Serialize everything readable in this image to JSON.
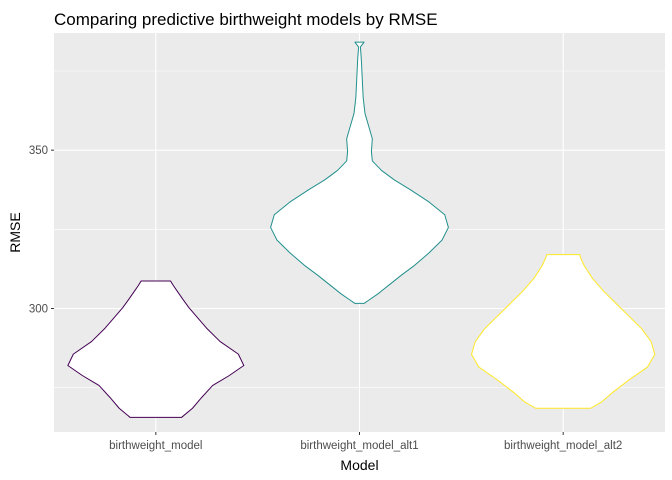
{
  "chart_data": {
    "type": "violin",
    "title": "Comparing predictive birthweight models by RMSE",
    "xlabel": "Model",
    "ylabel": "RMSE",
    "ylim": [
      261,
      387
    ],
    "yticks": [
      300,
      350
    ],
    "grid": true,
    "panel_background": "#EBEBEB",
    "categories": [
      "birthweight_model",
      "birthweight_model_alt1",
      "birthweight_model_alt2"
    ],
    "series": [
      {
        "category": "birthweight_model",
        "color": "#440154",
        "min": 265.6,
        "max": 308.7,
        "profile": [
          [
            265.6,
            0.28
          ],
          [
            268.5,
            0.4
          ],
          [
            271.9,
            0.5
          ],
          [
            275.7,
            0.62
          ],
          [
            278.8,
            0.8
          ],
          [
            282.0,
            0.96
          ],
          [
            285.6,
            0.9
          ],
          [
            289.6,
            0.7
          ],
          [
            293.6,
            0.56
          ],
          [
            297.6,
            0.44
          ],
          [
            300.3,
            0.36
          ],
          [
            302.7,
            0.3
          ],
          [
            305.2,
            0.24
          ],
          [
            307.3,
            0.19
          ],
          [
            308.7,
            0.16
          ]
        ]
      },
      {
        "category": "birthweight_model_alt1",
        "color": "#21908C",
        "min": 301.6,
        "max": 384.1,
        "profile": [
          [
            301.6,
            0.05
          ],
          [
            302.6,
            0.1
          ],
          [
            304.6,
            0.2
          ],
          [
            307.6,
            0.33
          ],
          [
            310.6,
            0.46
          ],
          [
            313.6,
            0.6
          ],
          [
            317.6,
            0.76
          ],
          [
            321.6,
            0.9
          ],
          [
            325.6,
            0.97
          ],
          [
            329.6,
            0.93
          ],
          [
            333.6,
            0.76
          ],
          [
            337.6,
            0.55
          ],
          [
            340.6,
            0.38
          ],
          [
            343.6,
            0.24
          ],
          [
            346.6,
            0.14
          ],
          [
            349.6,
            0.13
          ],
          [
            353.6,
            0.14
          ],
          [
            357.6,
            0.1
          ],
          [
            361.6,
            0.06
          ],
          [
            366.6,
            0.04
          ],
          [
            372.6,
            0.03
          ],
          [
            378.6,
            0.02
          ],
          [
            382.6,
            0.01
          ],
          [
            384.1,
            0.05
          ]
        ]
      },
      {
        "category": "birthweight_model_alt2",
        "color": "#FDE725",
        "min": 268.5,
        "max": 317.0,
        "profile": [
          [
            268.5,
            0.3
          ],
          [
            270.5,
            0.42
          ],
          [
            273.5,
            0.54
          ],
          [
            277.5,
            0.72
          ],
          [
            281.5,
            0.92
          ],
          [
            285.5,
            1.0
          ],
          [
            289.5,
            0.96
          ],
          [
            293.5,
            0.86
          ],
          [
            297.5,
            0.72
          ],
          [
            301.5,
            0.58
          ],
          [
            305.5,
            0.44
          ],
          [
            309.5,
            0.32
          ],
          [
            313.5,
            0.23
          ],
          [
            316.0,
            0.19
          ],
          [
            317.0,
            0.18
          ]
        ]
      }
    ]
  }
}
